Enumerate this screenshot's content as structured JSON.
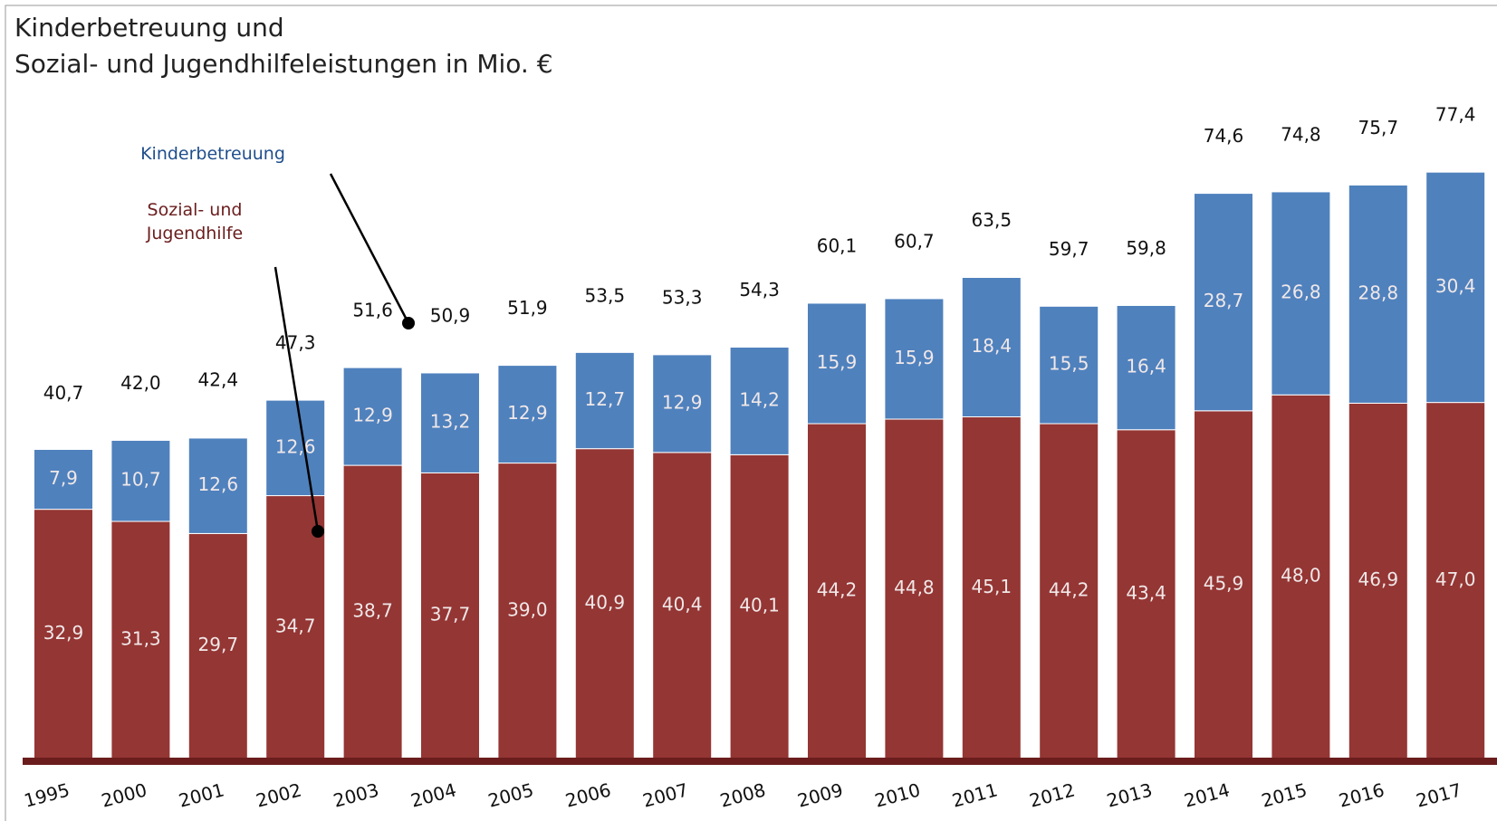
{
  "chart_data": {
    "type": "stacked-bar",
    "title": [
      "Kinderbetreuung und",
      "Sozial- und Jugendhilfeleistungen in Mio. €"
    ],
    "categories": [
      "1995",
      "2000",
      "2001",
      "2002",
      "2003",
      "2004",
      "2005",
      "2006",
      "2007",
      "2008",
      "2009",
      "2010",
      "2011",
      "2012",
      "2013",
      "2014",
      "2015",
      "2016",
      "2017"
    ],
    "series": [
      {
        "name": "Sozial- und Jugendhilfe",
        "color": "#943634",
        "values": [
          32.9,
          31.3,
          29.7,
          34.7,
          38.7,
          37.7,
          39.0,
          40.9,
          40.4,
          40.1,
          44.2,
          44.8,
          45.1,
          44.2,
          43.4,
          45.9,
          48.0,
          46.9,
          47.0
        ],
        "value_labels": [
          "32,9",
          "31,3",
          "29,7",
          "34,7",
          "38,7",
          "37,7",
          "39,0",
          "40,9",
          "40,4",
          "40,1",
          "44,2",
          "44,8",
          "45,1",
          "44,2",
          "43,4",
          "45,9",
          "48,0",
          "46,9",
          "47,0"
        ]
      },
      {
        "name": "Kinderbetreuung",
        "color": "#4f81bd",
        "values": [
          7.9,
          10.7,
          12.6,
          12.6,
          12.9,
          13.2,
          12.9,
          12.7,
          12.9,
          14.2,
          15.9,
          15.9,
          18.4,
          15.5,
          16.4,
          28.7,
          26.8,
          28.8,
          30.4
        ],
        "value_labels": [
          "7,9",
          "10,7",
          "12,6",
          "12,6",
          "12,9",
          "13,2",
          "12,9",
          "12,7",
          "12,9",
          "14,2",
          "15,9",
          "15,9",
          "18,4",
          "15,5",
          "16,4",
          "28,7",
          "26,8",
          "28,8",
          "30,4"
        ]
      }
    ],
    "totals": [
      40.7,
      42.0,
      42.4,
      47.3,
      51.6,
      50.9,
      51.9,
      53.5,
      53.3,
      54.3,
      60.1,
      60.7,
      63.5,
      59.7,
      59.8,
      74.6,
      74.8,
      75.7,
      77.4
    ],
    "total_labels": [
      "40,7",
      "42,0",
      "42,4",
      "47,3",
      "51,6",
      "50,9",
      "51,9",
      "53,5",
      "53,3",
      "54,3",
      "60,1",
      "60,7",
      "63,5",
      "59,7",
      "59,8",
      "74,6",
      "74,8",
      "75,7",
      "77,4"
    ],
    "ylim": [
      0,
      100
    ]
  }
}
